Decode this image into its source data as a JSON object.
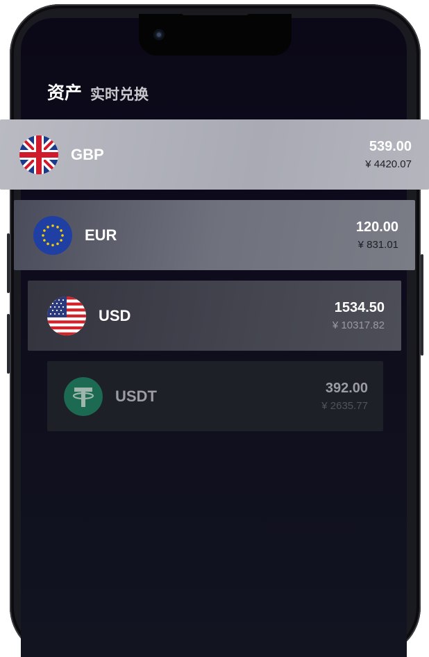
{
  "tabs": {
    "active": "资产",
    "secondary": "实时兑换"
  },
  "assets": [
    {
      "code": "GBP",
      "amount": "539.00",
      "cny": "¥ 4420.07",
      "icon": "uk-flag-icon"
    },
    {
      "code": "EUR",
      "amount": "120.00",
      "cny": "¥ 831.01",
      "icon": "eu-flag-icon"
    },
    {
      "code": "USD",
      "amount": "1534.50",
      "cny": "¥ 10317.82",
      "icon": "us-flag-icon"
    },
    {
      "code": "USDT",
      "amount": "392.00",
      "cny": "¥ 2635.77",
      "icon": "tether-icon"
    }
  ],
  "colors": {
    "tether_green": "#26a17b",
    "screen_bg": "#0b0818"
  }
}
